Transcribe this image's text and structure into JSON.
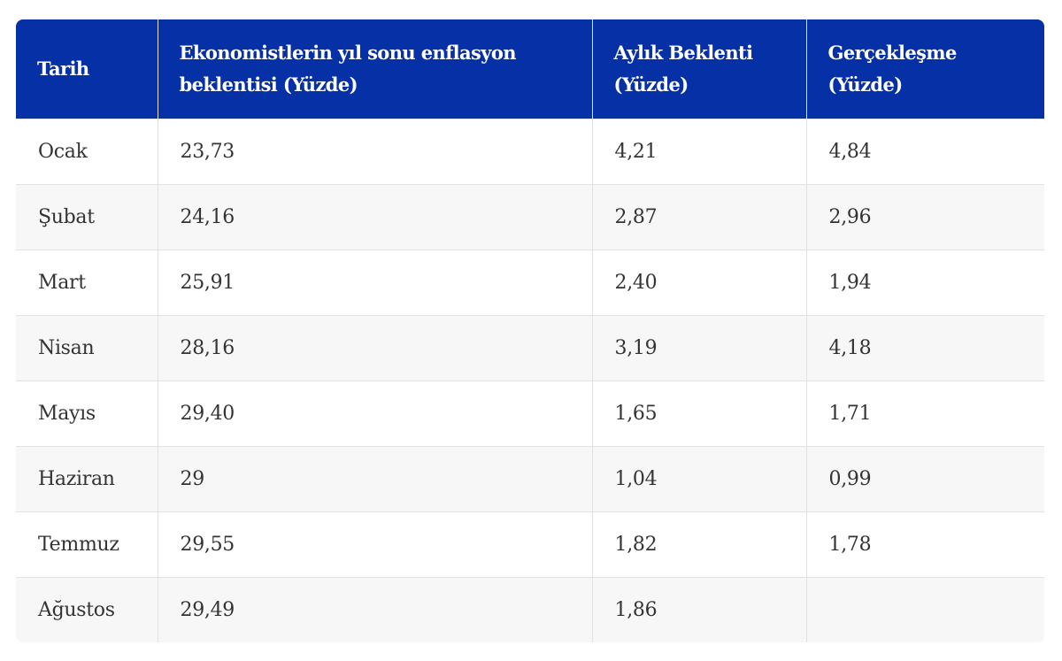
{
  "table": {
    "headers": [
      "Tarih",
      "Ekonomistlerin yıl sonu enflasyon beklentisi (Yüzde)",
      "Aylık Beklenti (Yüzde)",
      "Gerçekleşme (Yüzde)"
    ],
    "rows": [
      [
        "Ocak",
        "23,73",
        "4,21",
        "4,84"
      ],
      [
        "Şubat",
        "24,16",
        "2,87",
        "2,96"
      ],
      [
        "Mart",
        "25,91",
        "2,40",
        "1,94"
      ],
      [
        "Nisan",
        "28,16",
        "3,19",
        "4,18"
      ],
      [
        "Mayıs",
        "29,40",
        "1,65",
        "1,71"
      ],
      [
        "Haziran",
        "29",
        "1,04",
        "0,99"
      ],
      [
        "Temmuz",
        "29,55",
        "1,82",
        "1,78"
      ],
      [
        "Ağustos",
        "29,49",
        "1,86"
      ]
    ]
  }
}
